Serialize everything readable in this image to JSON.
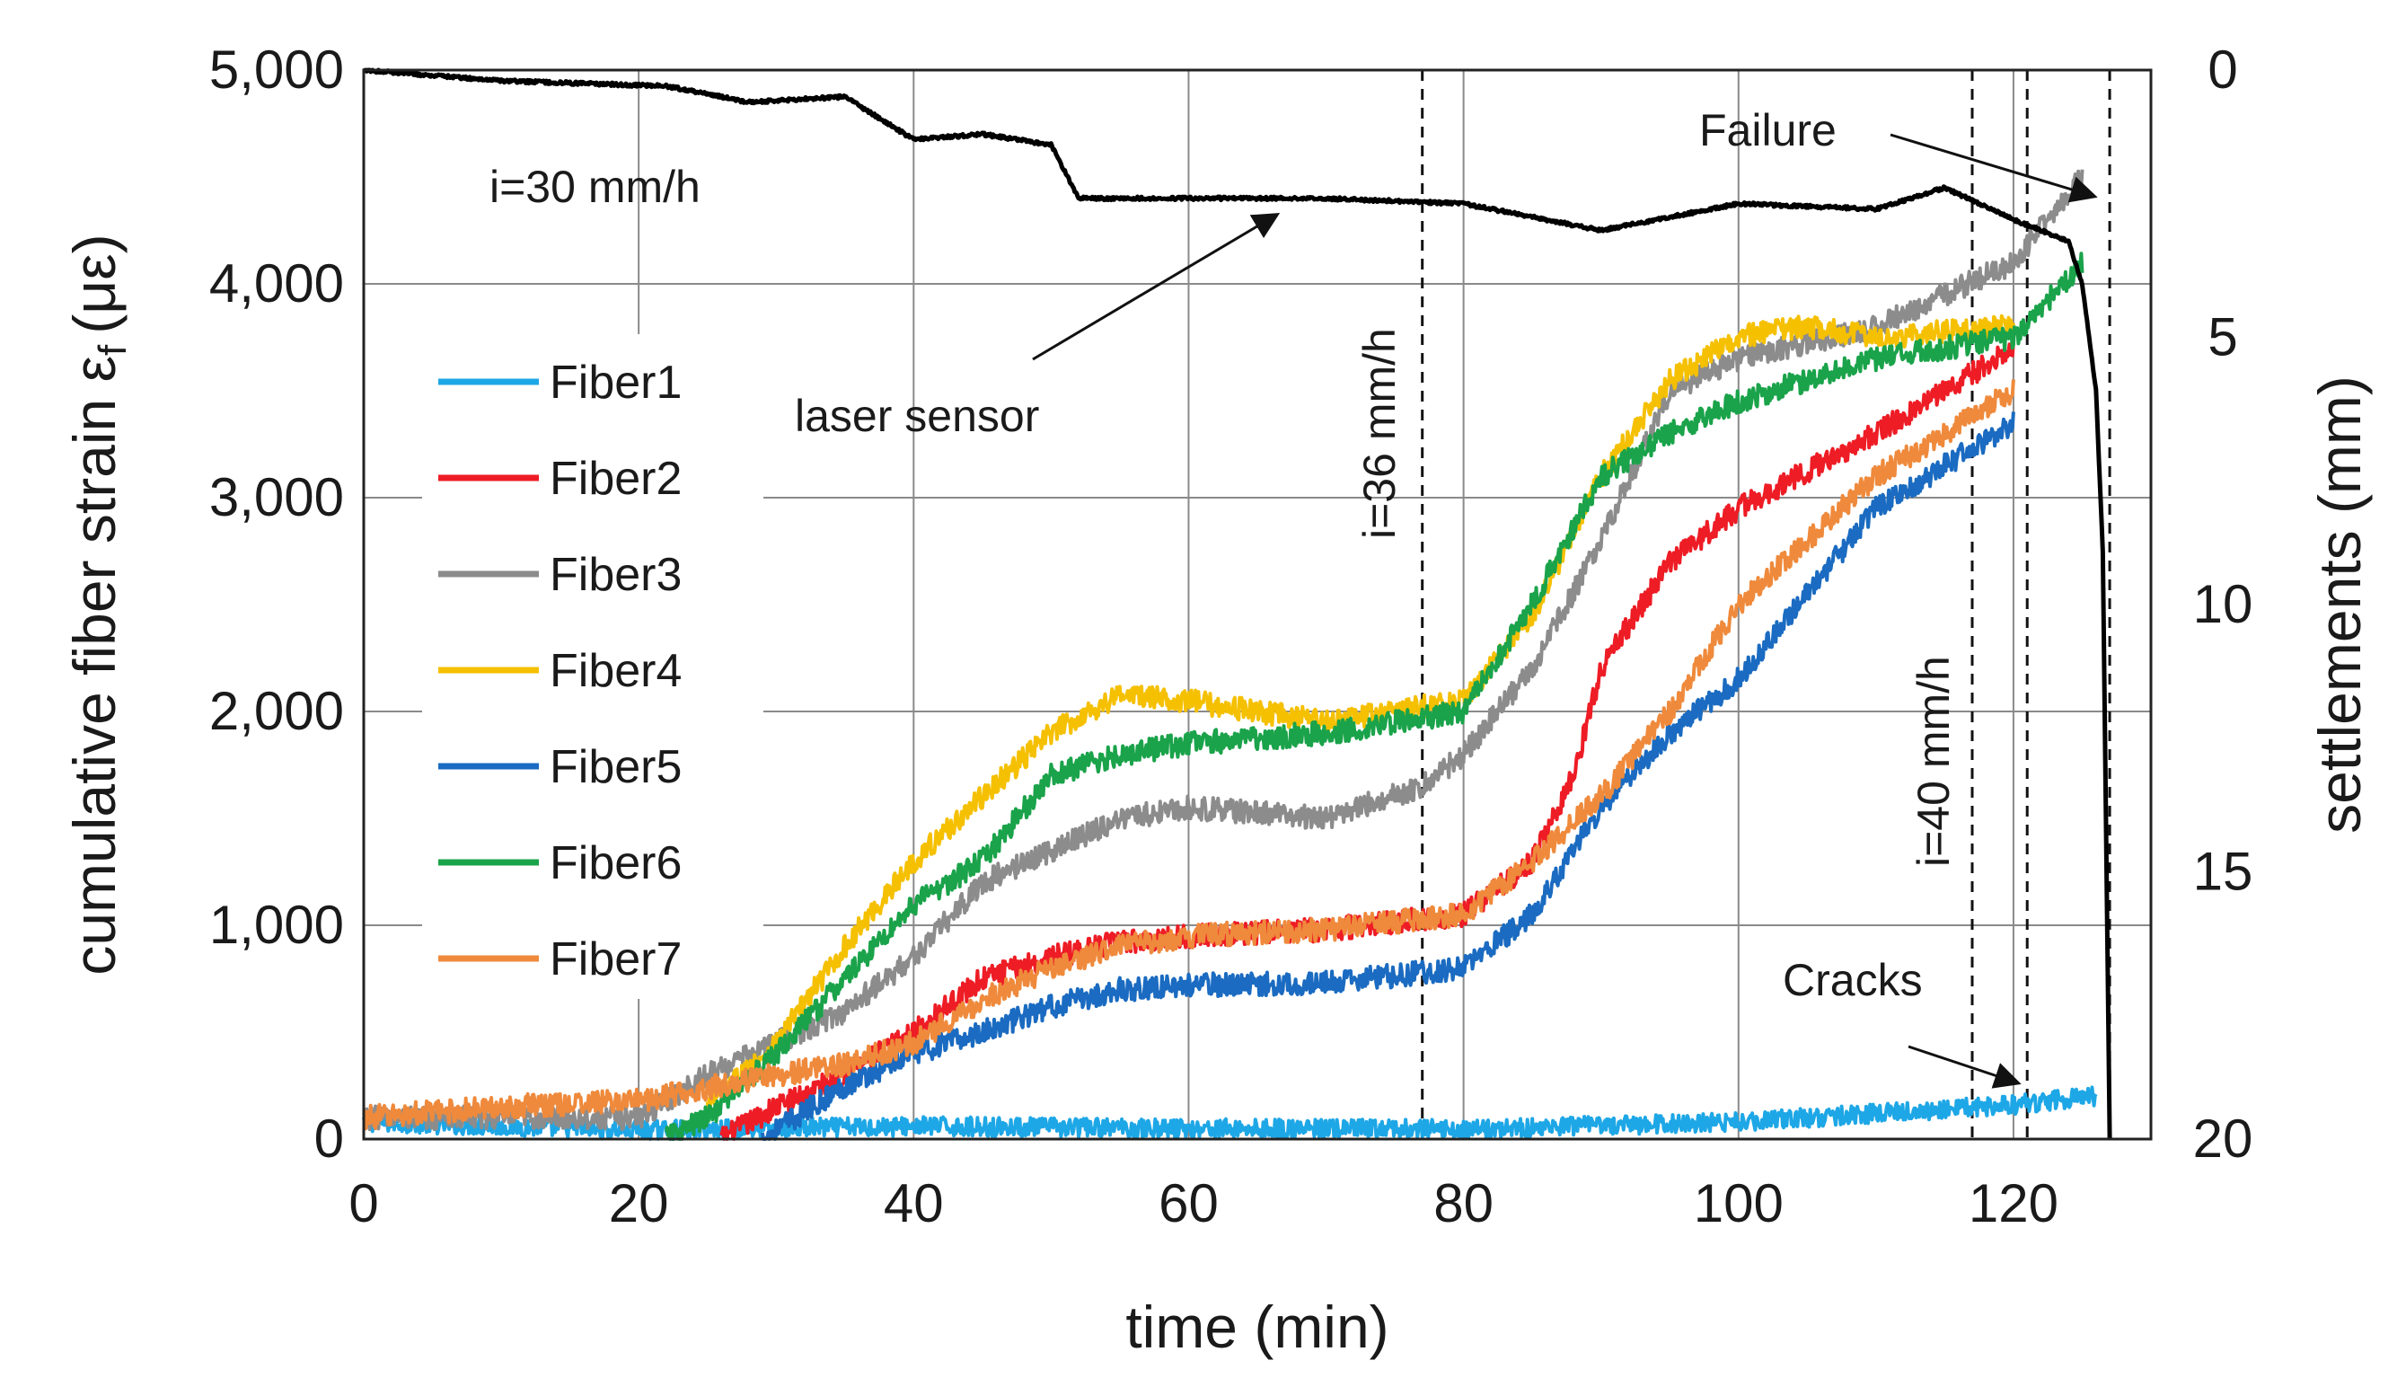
{
  "chart_data": {
    "type": "line",
    "title": "",
    "xlabel": "time (min)",
    "ylabel": "cumulative fiber strain ε",
    "ylabel_subscript": "f",
    "ylabel_unit": "(με)",
    "y2label": "settlements (mm)",
    "xlim": [
      0,
      130
    ],
    "ylim": [
      0,
      5000
    ],
    "y2lim": [
      0,
      20
    ],
    "x_ticks": [
      0,
      20,
      40,
      60,
      80,
      100,
      120
    ],
    "x_tick_labels": [
      "0",
      "20",
      "40",
      "60",
      "80",
      "100",
      "120"
    ],
    "y_ticks": [
      0,
      1000,
      2000,
      3000,
      4000,
      5000
    ],
    "y_tick_labels": [
      "0",
      "1,000",
      "2,000",
      "3,000",
      "4,000",
      "5,000"
    ],
    "y2_ticks": [
      0,
      5,
      10,
      15,
      20
    ],
    "y2_tick_labels": [
      "0",
      "5",
      "10",
      "15",
      "20"
    ],
    "grid": true,
    "legend_position": "left",
    "vlines": [
      77,
      117,
      121,
      127
    ],
    "annotations": {
      "rate1": "i=30 mm/h",
      "rate2": "i=36 mm/h",
      "rate3": "i=40 mm/h",
      "laser": "laser sensor",
      "failure": "Failure",
      "cracks": "Cracks"
    },
    "series": [
      {
        "name": "Fiber1",
        "color": "#1ea7e6",
        "x": [
          0,
          20,
          40,
          60,
          80,
          100,
          110,
          120,
          126
        ],
        "y": [
          80,
          40,
          60,
          50,
          45,
          80,
          120,
          160,
          200
        ]
      },
      {
        "name": "Fiber2",
        "color": "#ee1c25",
        "x": [
          26,
          30,
          35,
          40,
          45,
          50,
          55,
          60,
          70,
          80,
          85,
          88,
          90,
          95,
          100,
          110,
          120
        ],
        "y": [
          0,
          150,
          300,
          500,
          750,
          850,
          920,
          950,
          980,
          1050,
          1300,
          1700,
          2200,
          2700,
          2950,
          3300,
          3700
        ]
      },
      {
        "name": "Fiber3",
        "color": "#8c8c8c",
        "x": [
          0,
          20,
          25,
          30,
          35,
          40,
          45,
          50,
          55,
          60,
          70,
          77,
          80,
          85,
          90,
          95,
          100,
          110,
          120,
          125
        ],
        "y": [
          100,
          100,
          300,
          450,
          600,
          850,
          1200,
          1350,
          1500,
          1550,
          1500,
          1650,
          1800,
          2200,
          2800,
          3500,
          3650,
          3800,
          4100,
          4500
        ]
      },
      {
        "name": "Fiber4",
        "color": "#f5c000",
        "x": [
          25,
          30,
          35,
          40,
          45,
          50,
          55,
          60,
          70,
          80,
          85,
          90,
          95,
          100,
          105,
          110,
          120
        ],
        "y": [
          150,
          450,
          900,
          1300,
          1600,
          1900,
          2080,
          2050,
          1950,
          2050,
          2450,
          3100,
          3550,
          3750,
          3800,
          3750,
          3800
        ]
      },
      {
        "name": "Fiber5",
        "color": "#1a6bc1",
        "x": [
          29,
          35,
          40,
          45,
          50,
          55,
          60,
          70,
          80,
          85,
          90,
          95,
          100,
          110,
          120
        ],
        "y": [
          0,
          250,
          400,
          500,
          620,
          700,
          720,
          730,
          800,
          1050,
          1550,
          1900,
          2150,
          2950,
          3350
        ]
      },
      {
        "name": "Fiber6",
        "color": "#1aa34a",
        "x": [
          22,
          25,
          30,
          35,
          40,
          45,
          50,
          55,
          60,
          70,
          80,
          85,
          90,
          95,
          100,
          110,
          120,
          125
        ],
        "y": [
          0,
          100,
          400,
          750,
          1100,
          1300,
          1700,
          1800,
          1850,
          1900,
          2000,
          2500,
          3100,
          3300,
          3450,
          3650,
          3750,
          4100
        ]
      },
      {
        "name": "Fiber7",
        "color": "#ef8a3c",
        "x": [
          0,
          10,
          20,
          30,
          35,
          40,
          45,
          50,
          55,
          60,
          70,
          80,
          85,
          90,
          95,
          100,
          110,
          120
        ],
        "y": [
          100,
          150,
          180,
          300,
          350,
          450,
          650,
          800,
          900,
          950,
          980,
          1050,
          1300,
          1600,
          2000,
          2500,
          3100,
          3500
        ]
      },
      {
        "name": "laser sensor",
        "color": "#000000",
        "axis": "right",
        "x": [
          0,
          10,
          22,
          28,
          35,
          40,
          45,
          50,
          52,
          60,
          70,
          80,
          90,
          100,
          110,
          115,
          120,
          124,
          125,
          126,
          126.5,
          127
        ],
        "y": [
          0,
          0.2,
          0.3,
          0.6,
          0.5,
          1.3,
          1.2,
          1.4,
          2.4,
          2.4,
          2.4,
          2.5,
          3.0,
          2.5,
          2.6,
          2.2,
          2.8,
          3.2,
          4.0,
          6.0,
          9.0,
          20.0
        ]
      }
    ]
  }
}
